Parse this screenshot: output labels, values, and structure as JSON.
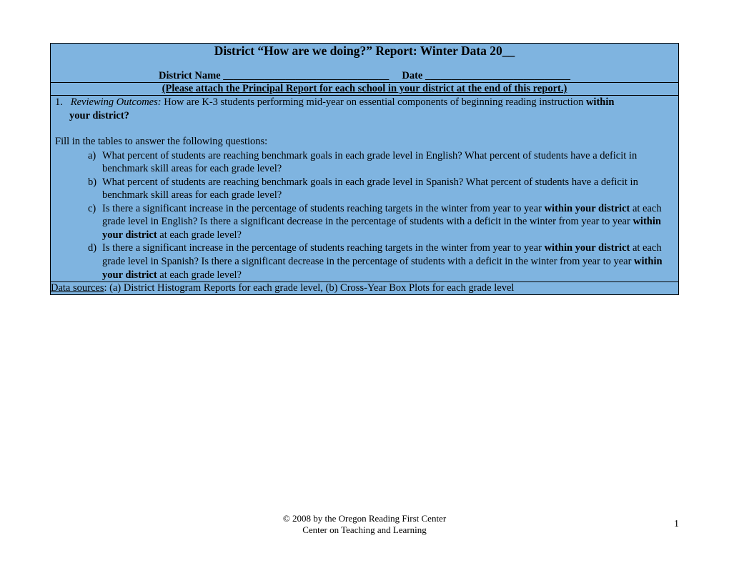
{
  "colors": {
    "cell_bg": "#7fb4e0",
    "border": "#000000",
    "text": "#000000",
    "page_bg": "#ffffff"
  },
  "header": {
    "title": "District “How are we doing?” Report: Winter Data 20__",
    "district_label": "District Name",
    "district_blank": "________________________________",
    "date_label": "Date",
    "date_blank": "____________________________"
  },
  "attach_note": "(Please attach the Principal Report for each school in your district at the end of this report.)",
  "question1": {
    "number": "1.",
    "label_italic": "Reviewing Outcomes:",
    "text_part1": " How are K-3 students performing mid-year on essential components of beginning reading instruction ",
    "bold_tail": "within",
    "line2_bold": "your district?"
  },
  "fill_instruction": "Fill in the tables to answer the following questions:",
  "subitems": {
    "a": {
      "marker": "a)",
      "text": "What percent of students are reaching benchmark goals in each grade level in English? What percent of students have a deficit in benchmark skill areas for each grade level?"
    },
    "b": {
      "marker": "b)",
      "text": "What percent of students are reaching benchmark goals in each grade level in Spanish? What percent of students have a deficit in benchmark skill areas for each grade level?"
    },
    "c": {
      "marker": "c)",
      "part1": "Is there a significant increase in the percentage of students reaching targets in the winter from year to year ",
      "bold1": "within your district",
      "part2": " at each grade level in English? Is there a significant decrease in the percentage of students with a deficit in the winter from year to year ",
      "bold2": "within your district",
      "part3": " at each grade level?"
    },
    "d": {
      "marker": "d)",
      "part1": "Is there a significant increase in the percentage of students reaching targets in the winter from year to year ",
      "bold1": "within your district",
      "part2": " at each grade level in Spanish? Is there a significant decrease in the percentage of students with a deficit in the winter from year to year ",
      "bold2": "within your district",
      "part3": " at each grade level?"
    }
  },
  "sources": {
    "label": "Data sources",
    "text": ": (a) District Histogram Reports for each grade level, (b) Cross-Year Box Plots for each grade level"
  },
  "footer": {
    "line1": "© 2008 by the Oregon Reading First Center",
    "line2": "Center on Teaching and Learning"
  },
  "page_number": "1"
}
